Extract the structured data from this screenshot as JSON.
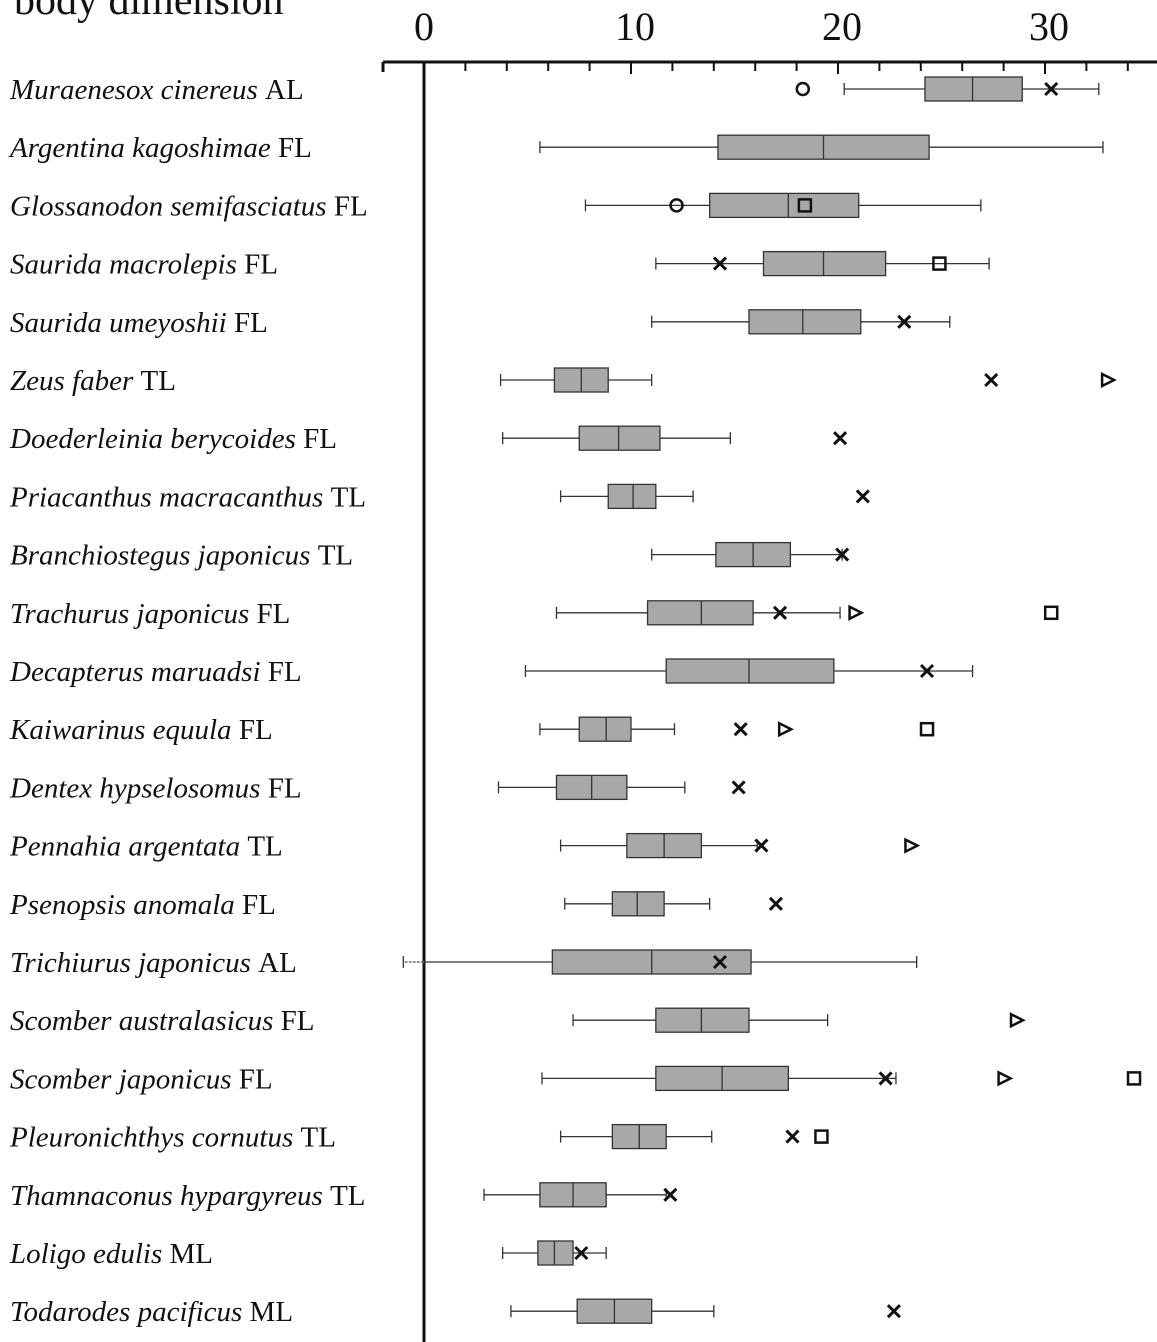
{
  "chart_data": {
    "type": "boxplot",
    "title": "body dimension",
    "xlabel": "",
    "xlim": [
      -1,
      34
    ],
    "xticks": [
      0,
      10,
      20,
      30
    ],
    "xtick_labels": [
      "0",
      "10",
      "20",
      "30"
    ],
    "grid": false,
    "orientation": "horizontal",
    "marker_legend": {
      "circle": "o",
      "cross": "×",
      "triangle": "▷",
      "square": "□"
    },
    "series": [
      {
        "species": "Muraenesox cinereus",
        "unit": "AL",
        "min": 20.3,
        "q1": 24.2,
        "median": 26.5,
        "q3": 28.9,
        "max": 32.6,
        "markers": [
          {
            "shape": "circle",
            "x": 18.3
          },
          {
            "shape": "cross",
            "x": 30.3
          }
        ]
      },
      {
        "species": "Argentina kagoshimae",
        "unit": "FL",
        "min": 5.6,
        "q1": 14.2,
        "median": 19.3,
        "q3": 24.4,
        "max": 32.8,
        "markers": []
      },
      {
        "species": "Glossanodon semifasciatus",
        "unit": "FL",
        "min": 7.8,
        "q1": 13.8,
        "median": 17.6,
        "q3": 21.0,
        "max": 26.9,
        "markers": [
          {
            "shape": "circle",
            "x": 12.2
          },
          {
            "shape": "square",
            "x": 18.4
          }
        ]
      },
      {
        "species": "Saurida macrolepis",
        "unit": "FL",
        "min": 11.2,
        "q1": 16.4,
        "median": 19.3,
        "q3": 22.3,
        "max": 27.3,
        "markers": [
          {
            "shape": "cross",
            "x": 14.3
          },
          {
            "shape": "square",
            "x": 24.9
          }
        ]
      },
      {
        "species": "Saurida umeyoshii",
        "unit": "FL",
        "min": 11.0,
        "q1": 15.7,
        "median": 18.3,
        "q3": 21.1,
        "max": 25.4,
        "markers": [
          {
            "shape": "cross",
            "x": 23.2
          }
        ]
      },
      {
        "species": "Zeus faber",
        "unit": "TL",
        "min": 3.7,
        "q1": 6.3,
        "median": 7.6,
        "q3": 8.9,
        "max": 11.0,
        "markers": [
          {
            "shape": "cross",
            "x": 27.4
          },
          {
            "shape": "triangle",
            "x": 33.0
          }
        ]
      },
      {
        "species": "Doederleinia berycoides",
        "unit": "FL",
        "min": 3.8,
        "q1": 7.5,
        "median": 9.4,
        "q3": 11.4,
        "max": 14.8,
        "markers": [
          {
            "shape": "cross",
            "x": 20.1
          }
        ]
      },
      {
        "species": "Priacanthus macracanthus",
        "unit": "TL",
        "min": 6.6,
        "q1": 8.9,
        "median": 10.1,
        "q3": 11.2,
        "max": 13.0,
        "markers": [
          {
            "shape": "cross",
            "x": 21.2
          }
        ]
      },
      {
        "species": "Branchiostegus japonicus",
        "unit": "TL",
        "min": 11.0,
        "q1": 14.1,
        "median": 15.9,
        "q3": 17.7,
        "max": 20.2,
        "markers": [
          {
            "shape": "cross",
            "x": 20.2
          }
        ]
      },
      {
        "species": "Trachurus japonicus",
        "unit": "FL",
        "min": 6.4,
        "q1": 10.8,
        "median": 13.4,
        "q3": 15.9,
        "max": 20.1,
        "markers": [
          {
            "shape": "cross",
            "x": 17.2
          },
          {
            "shape": "triangle",
            "x": 20.8
          },
          {
            "shape": "square",
            "x": 30.3
          }
        ]
      },
      {
        "species": "Decapterus maruadsi",
        "unit": "FL",
        "min": 4.9,
        "q1": 11.7,
        "median": 15.7,
        "q3": 19.8,
        "max": 26.5,
        "markers": [
          {
            "shape": "cross",
            "x": 24.3
          }
        ]
      },
      {
        "species": "Kaiwarinus equula",
        "unit": "FL",
        "min": 5.6,
        "q1": 7.5,
        "median": 8.8,
        "q3": 10.0,
        "max": 12.1,
        "markers": [
          {
            "shape": "cross",
            "x": 15.3
          },
          {
            "shape": "triangle",
            "x": 17.4
          },
          {
            "shape": "square",
            "x": 24.3
          }
        ]
      },
      {
        "species": "Dentex hypselosomus",
        "unit": "FL",
        "min": 3.6,
        "q1": 6.4,
        "median": 8.1,
        "q3": 9.8,
        "max": 12.6,
        "markers": [
          {
            "shape": "cross",
            "x": 15.2
          }
        ]
      },
      {
        "species": "Pennahia argentata",
        "unit": "TL",
        "min": 6.6,
        "q1": 9.8,
        "median": 11.6,
        "q3": 13.4,
        "max": 16.1,
        "markers": [
          {
            "shape": "cross",
            "x": 16.3
          },
          {
            "shape": "triangle",
            "x": 23.5
          }
        ]
      },
      {
        "species": "Psenopsis anomala",
        "unit": "FL",
        "min": 6.8,
        "q1": 9.1,
        "median": 10.3,
        "q3": 11.6,
        "max": 13.8,
        "markers": [
          {
            "shape": "cross",
            "x": 17.0
          }
        ]
      },
      {
        "species": "Trichiurus japonicus",
        "unit": "AL",
        "min": -1.0,
        "q1": 6.2,
        "median": 11.0,
        "q3": 15.8,
        "max": 23.8,
        "markers": [
          {
            "shape": "cross",
            "x": 14.3
          }
        ]
      },
      {
        "species": "Scomber australasicus",
        "unit": "FL",
        "min": 7.2,
        "q1": 11.2,
        "median": 13.4,
        "q3": 15.7,
        "max": 19.5,
        "markers": [
          {
            "shape": "triangle",
            "x": 28.6
          }
        ]
      },
      {
        "species": "Scomber japonicus",
        "unit": "FL",
        "min": 5.7,
        "q1": 11.2,
        "median": 14.4,
        "q3": 17.6,
        "max": 22.8,
        "markers": [
          {
            "shape": "cross",
            "x": 22.3
          },
          {
            "shape": "triangle",
            "x": 28.0
          },
          {
            "shape": "square",
            "x": 34.3
          }
        ]
      },
      {
        "species": "Pleuronichthys cornutus",
        "unit": "TL",
        "min": 6.6,
        "q1": 9.1,
        "median": 10.4,
        "q3": 11.7,
        "max": 13.9,
        "markers": [
          {
            "shape": "cross",
            "x": 17.8
          },
          {
            "shape": "square",
            "x": 19.2
          }
        ]
      },
      {
        "species": "Thamnaconus hypargyreus",
        "unit": "TL",
        "min": 2.9,
        "q1": 5.6,
        "median": 7.2,
        "q3": 8.8,
        "max": 11.7,
        "markers": [
          {
            "shape": "cross",
            "x": 11.9
          }
        ]
      },
      {
        "species": "Loligo edulis",
        "unit": "ML",
        "min": 3.8,
        "q1": 5.5,
        "median": 6.3,
        "q3": 7.2,
        "max": 8.8,
        "markers": [
          {
            "shape": "cross",
            "x": 7.6
          }
        ]
      },
      {
        "species": "Todarodes pacificus",
        "unit": "ML",
        "min": 4.2,
        "q1": 7.4,
        "median": 9.2,
        "q3": 11.0,
        "max": 14.0,
        "markers": [
          {
            "shape": "cross",
            "x": 22.7
          }
        ]
      }
    ]
  }
}
